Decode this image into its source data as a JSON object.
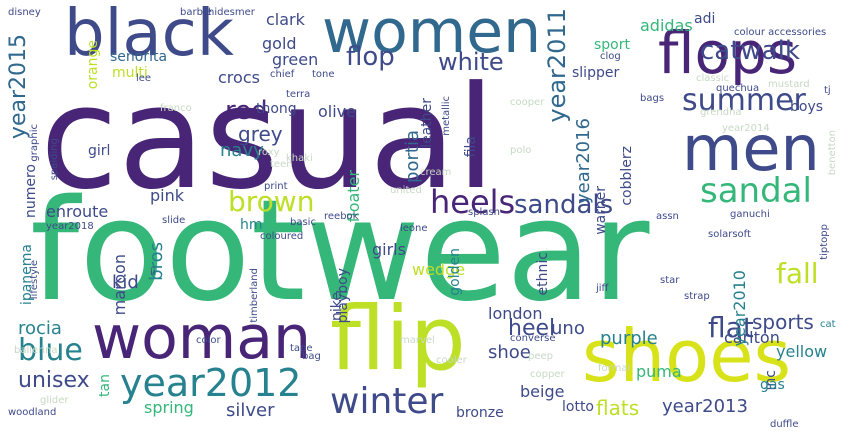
{
  "palette": {
    "purple": "#482576",
    "indigo": "#3e4a89",
    "blue": "#31688e",
    "teal": "#26828e",
    "green": "#35b779",
    "lime": "#bddf26",
    "yellow": "#d8e219",
    "pale": "#c7d9c4"
  },
  "words": [
    {
      "text": "casual",
      "weight": 1.0
    },
    {
      "text": "footwear",
      "weight": 0.97
    },
    {
      "text": "shoes",
      "weight": 0.5
    },
    {
      "text": "flip",
      "weight": 0.48
    },
    {
      "text": "black",
      "weight": 0.45
    },
    {
      "text": "women",
      "weight": 0.46
    },
    {
      "text": "woman",
      "weight": 0.46
    },
    {
      "text": "men",
      "weight": 0.44
    },
    {
      "text": "flops",
      "weight": 0.4
    },
    {
      "text": "year2012",
      "weight": 0.3
    },
    {
      "text": "winter",
      "weight": 0.26
    },
    {
      "text": "sandal",
      "weight": 0.22
    },
    {
      "text": "summer",
      "weight": 0.2
    },
    {
      "text": "heels",
      "weight": 0.2
    },
    {
      "text": "catwalk",
      "weight": 0.18
    },
    {
      "text": "sandals",
      "weight": 0.17
    },
    {
      "text": "brown",
      "weight": 0.17
    },
    {
      "text": "blue",
      "weight": 0.17
    },
    {
      "text": "flat",
      "weight": 0.15
    },
    {
      "text": "flop",
      "weight": 0.15
    },
    {
      "text": "white",
      "weight": 0.14
    },
    {
      "text": "year2011",
      "weight": 0.14
    },
    {
      "text": "year2015",
      "weight": 0.13
    },
    {
      "text": "red",
      "weight": 0.13
    },
    {
      "text": "unisex",
      "weight": 0.13
    },
    {
      "text": "fall",
      "weight": 0.13
    },
    {
      "text": "sports",
      "weight": 0.12
    },
    {
      "text": "flats",
      "weight": 0.12
    },
    {
      "text": "heel",
      "weight": 0.12
    },
    {
      "text": "year2013",
      "weight": 0.11
    },
    {
      "text": "purple",
      "weight": 0.11
    },
    {
      "text": "year2016",
      "weight": 0.1
    },
    {
      "text": "grey",
      "weight": 0.1
    },
    {
      "text": "silver",
      "weight": 0.1
    },
    {
      "text": "rocia",
      "weight": 0.1
    },
    {
      "text": "navy",
      "weight": 0.1
    },
    {
      "text": "uno",
      "weight": 0.1
    },
    {
      "text": "green",
      "weight": 0.09
    },
    {
      "text": "gold",
      "weight": 0.09
    },
    {
      "text": "crocs",
      "weight": 0.09
    },
    {
      "text": "adidas",
      "weight": 0.09
    },
    {
      "text": "clark",
      "weight": 0.09
    },
    {
      "text": "yellow",
      "weight": 0.09
    },
    {
      "text": "london",
      "weight": 0.09
    },
    {
      "text": "olive",
      "weight": 0.09
    },
    {
      "text": "shoe",
      "weight": 0.09
    },
    {
      "text": "puma",
      "weight": 0.09
    },
    {
      "text": "carlton",
      "weight": 0.09
    },
    {
      "text": "beige",
      "weight": 0.09
    },
    {
      "text": "spring",
      "weight": 0.09
    },
    {
      "text": "wedge",
      "weight": 0.09
    },
    {
      "text": "portia",
      "weight": 0.09
    },
    {
      "text": "kid",
      "weight": 0.09
    },
    {
      "text": "maroon",
      "weight": 0.09
    },
    {
      "text": "bros",
      "weight": 0.09
    },
    {
      "text": "slipper",
      "weight": 0.08
    },
    {
      "text": "multi",
      "weight": 0.08
    },
    {
      "text": "year2010",
      "weight": 0.08
    },
    {
      "text": "enroute",
      "weight": 0.08
    },
    {
      "text": "pink",
      "weight": 0.08
    },
    {
      "text": "girls",
      "weight": 0.08
    },
    {
      "text": "floater",
      "weight": 0.08
    },
    {
      "text": "cobblerz",
      "weight": 0.08
    },
    {
      "text": "boys",
      "weight": 0.08
    },
    {
      "text": "sport",
      "weight": 0.07
    },
    {
      "text": "adi",
      "weight": 0.07
    },
    {
      "text": "senorita",
      "weight": 0.07
    },
    {
      "text": "orange",
      "weight": 0.07
    },
    {
      "text": "thong",
      "weight": 0.07
    },
    {
      "text": "leather",
      "weight": 0.07
    },
    {
      "text": "fila",
      "weight": 0.07
    },
    {
      "text": "warner",
      "weight": 0.07
    },
    {
      "text": "hm",
      "weight": 0.07
    },
    {
      "text": "playboy",
      "weight": 0.07
    },
    {
      "text": "nike",
      "weight": 0.07
    },
    {
      "text": "bronze",
      "weight": 0.07
    },
    {
      "text": "lotto",
      "weight": 0.07
    },
    {
      "text": "inc",
      "weight": 0.07
    },
    {
      "text": "girl",
      "weight": 0.06
    },
    {
      "text": "numero",
      "weight": 0.06
    },
    {
      "text": "ipanema",
      "weight": 0.06
    },
    {
      "text": "tan",
      "weight": 0.06
    },
    {
      "text": "gas",
      "weight": 0.06
    },
    {
      "text": "golden",
      "weight": 0.06
    },
    {
      "text": "ethnic",
      "weight": 0.06
    },
    {
      "text": "cooper",
      "weight": 0.05
    },
    {
      "text": "polo",
      "weight": 0.05
    },
    {
      "text": "grendha",
      "weight": 0.05
    },
    {
      "text": "ganuchi",
      "weight": 0.05
    },
    {
      "text": "teen",
      "weight": 0.05
    },
    {
      "text": "khaki",
      "weight": 0.05
    },
    {
      "text": "roxy",
      "weight": 0.05
    },
    {
      "text": "basic",
      "weight": 0.05
    },
    {
      "text": "peep",
      "weight": 0.05
    },
    {
      "text": "converse",
      "weight": 0.05
    },
    {
      "text": "copper",
      "weight": 0.05
    },
    {
      "text": "marvel",
      "weight": 0.05
    },
    {
      "text": "cooler",
      "weight": 0.05
    },
    {
      "text": "formal",
      "weight": 0.05
    },
    {
      "text": "glider",
      "weight": 0.05
    },
    {
      "text": "year2018",
      "weight": 0.05
    },
    {
      "text": "disney",
      "weight": 0.05
    },
    {
      "text": "franco",
      "weight": 0.05
    },
    {
      "text": "cream",
      "weight": 0.05
    },
    {
      "text": "slide",
      "weight": 0.04
    },
    {
      "text": "leone",
      "weight": 0.04
    },
    {
      "text": "united",
      "weight": 0.04
    },
    {
      "text": "splash",
      "weight": 0.04
    },
    {
      "text": "solarsoft",
      "weight": 0.04
    },
    {
      "text": "bags",
      "weight": 0.04
    },
    {
      "text": "tone",
      "weight": 0.04
    },
    {
      "text": "clog",
      "weight": 0.04
    },
    {
      "text": "tiptopp",
      "weight": 0.04
    },
    {
      "text": "benetton",
      "weight": 0.04
    },
    {
      "text": "lee",
      "weight": 0.04
    },
    {
      "text": "chief",
      "weight": 0.04
    },
    {
      "text": "star",
      "weight": 0.04
    },
    {
      "text": "strap",
      "weight": 0.04
    },
    {
      "text": "ballerina",
      "weight": 0.04
    },
    {
      "text": "woodland",
      "weight": 0.04
    },
    {
      "text": "colour accessories",
      "weight": 0.04
    },
    {
      "text": "year2014",
      "weight": 0.04
    },
    {
      "text": "classic",
      "weight": 0.04
    },
    {
      "text": "quechua",
      "weight": 0.04
    },
    {
      "text": "mustard",
      "weight": 0.04
    },
    {
      "text": "color",
      "weight": 0.04
    },
    {
      "text": "terra",
      "weight": 0.04
    },
    {
      "text": "barbie",
      "weight": 0.04
    },
    {
      "text": "hidesmer",
      "weight": 0.04
    },
    {
      "text": "graphic",
      "weight": 0.04
    },
    {
      "text": "metallic",
      "weight": 0.04
    },
    {
      "text": "timberland",
      "weight": 0.04
    },
    {
      "text": "lifestyle",
      "weight": 0.04
    },
    {
      "text": "assn",
      "weight": 0.04
    },
    {
      "text": "print",
      "weight": 0.04
    },
    {
      "text": "coloured",
      "weight": 0.04
    },
    {
      "text": "reebok",
      "weight": 0.04
    },
    {
      "text": "spalding",
      "weight": 0.04
    },
    {
      "text": "cat",
      "weight": 0.04
    },
    {
      "text": "tape",
      "weight": 0.04
    },
    {
      "text": "bag",
      "weight": 0.04
    },
    {
      "text": "duffle",
      "weight": 0.04
    },
    {
      "text": "ii",
      "weight": 0.04
    },
    {
      "text": "tj",
      "weight": 0.04
    },
    {
      "text": "jiff",
      "weight": 0.04
    }
  ]
}
